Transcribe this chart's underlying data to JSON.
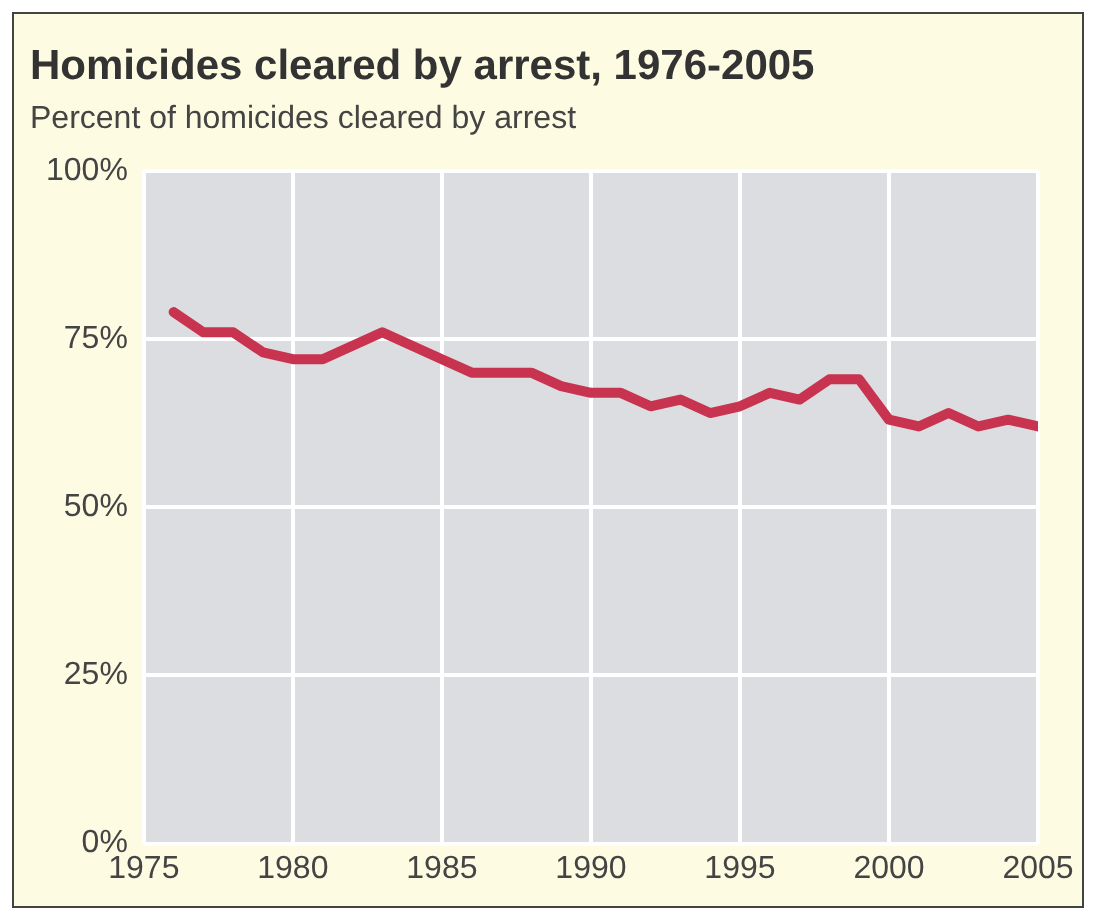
{
  "chart_data": {
    "type": "line",
    "title": "Homicides cleared by arrest, 1976-2005",
    "subtitle": "Percent of homicides cleared by arrest",
    "x": [
      1976,
      1977,
      1978,
      1979,
      1980,
      1981,
      1982,
      1983,
      1984,
      1985,
      1986,
      1987,
      1988,
      1989,
      1990,
      1991,
      1992,
      1993,
      1994,
      1995,
      1996,
      1997,
      1998,
      1999,
      2000,
      2001,
      2002,
      2003,
      2004,
      2005
    ],
    "series": [
      {
        "color": "#c8334f",
        "values": [
          79,
          76,
          76,
          73,
          72,
          72,
          74,
          76,
          74,
          72,
          70,
          70,
          70,
          68,
          67,
          67,
          65,
          66,
          64,
          65,
          67,
          66,
          69,
          69,
          63,
          62,
          64,
          62,
          63,
          62
        ]
      }
    ],
    "xlim": [
      1975,
      2005
    ],
    "xticks": [
      1975,
      1980,
      1985,
      1990,
      1995,
      2000,
      2005
    ],
    "ylim": [
      0,
      100
    ],
    "yticks": [
      {
        "value": 0,
        "label": "0%"
      },
      {
        "value": 25,
        "label": "25%"
      },
      {
        "value": 50,
        "label": "50%"
      },
      {
        "value": 75,
        "label": "75%"
      },
      {
        "value": 100,
        "label": "100%"
      }
    ],
    "grid": true,
    "legend": false,
    "marker": "none",
    "line_style": "solid"
  }
}
